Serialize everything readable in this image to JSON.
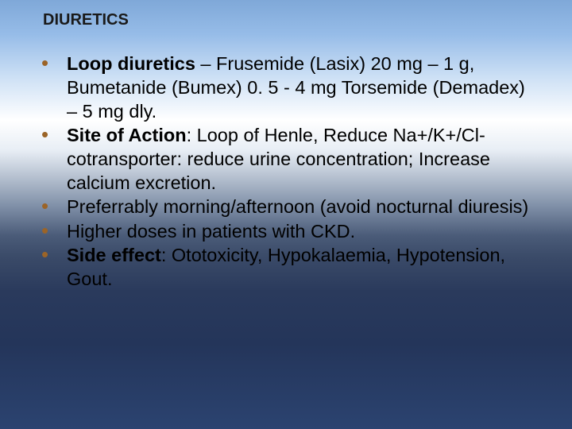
{
  "title": "DIURETICS",
  "bullets": [
    {
      "lead_bold": " Loop diuretics",
      "lead_rest": " – Frusemide (Lasix) 20 mg – 1 g, Bumetanide (Bumex) 0. 5 - 4 mg  Torsemide (Demadex) – 5 mg dly."
    },
    {
      "lead_bold": " Site of Action",
      "lead_rest": ": Loop of Henle, Reduce Na+/K+/Cl- cotransporter: reduce urine concentration; Increase calcium excretion."
    },
    {
      "lead_bold": "",
      "lead_rest": " Preferrably morning/afternoon (avoid nocturnal diuresis)"
    },
    {
      "lead_bold": "",
      "lead_rest": " Higher doses in patients with CKD."
    },
    {
      "lead_bold": " Side effect",
      "lead_rest": ": Ototoxicity, Hypokalaemia, Hypotension, Gout."
    }
  ],
  "bullet_glyph": "•",
  "colors": {
    "bullet": "#9b6428",
    "text": "#000000"
  }
}
